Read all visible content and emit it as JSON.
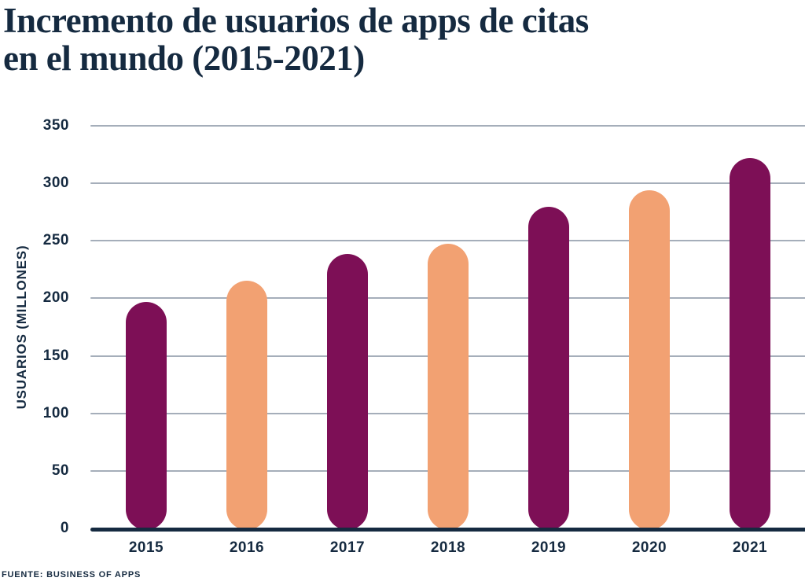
{
  "title": {
    "line1": "Incremento de usuarios de apps de citas",
    "line2": "en el mundo (2015-2021)"
  },
  "source_note": "FUENTE: BUSINESS OF APPS",
  "colors": {
    "navy_text": "#152a40",
    "bar_purple": "#7d0f56",
    "bar_peach": "#f2a172",
    "gridline": "#a5aeba",
    "background": "#ffffff"
  },
  "chart_data": {
    "type": "bar",
    "title": "Incremento de usuarios de apps de citas en el mundo (2015-2021)",
    "categories": [
      "2015",
      "2016",
      "2017",
      "2018",
      "2019",
      "2020",
      "2021"
    ],
    "values": [
      198,
      217,
      240,
      249,
      281,
      295,
      323
    ],
    "bar_colors": [
      "#7d0f56",
      "#f2a172",
      "#7d0f56",
      "#f2a172",
      "#7d0f56",
      "#f2a172",
      "#7d0f56"
    ],
    "xlabel": "",
    "ylabel": "USUARIOS (MILLONES)",
    "ylim": [
      0,
      350
    ],
    "yticks": [
      0,
      50,
      100,
      150,
      200,
      250,
      300,
      350
    ],
    "grid": true,
    "legend": false,
    "bar_shape": "pill-rounded-ends",
    "source": "FUENTE: BUSINESS OF APPS"
  }
}
